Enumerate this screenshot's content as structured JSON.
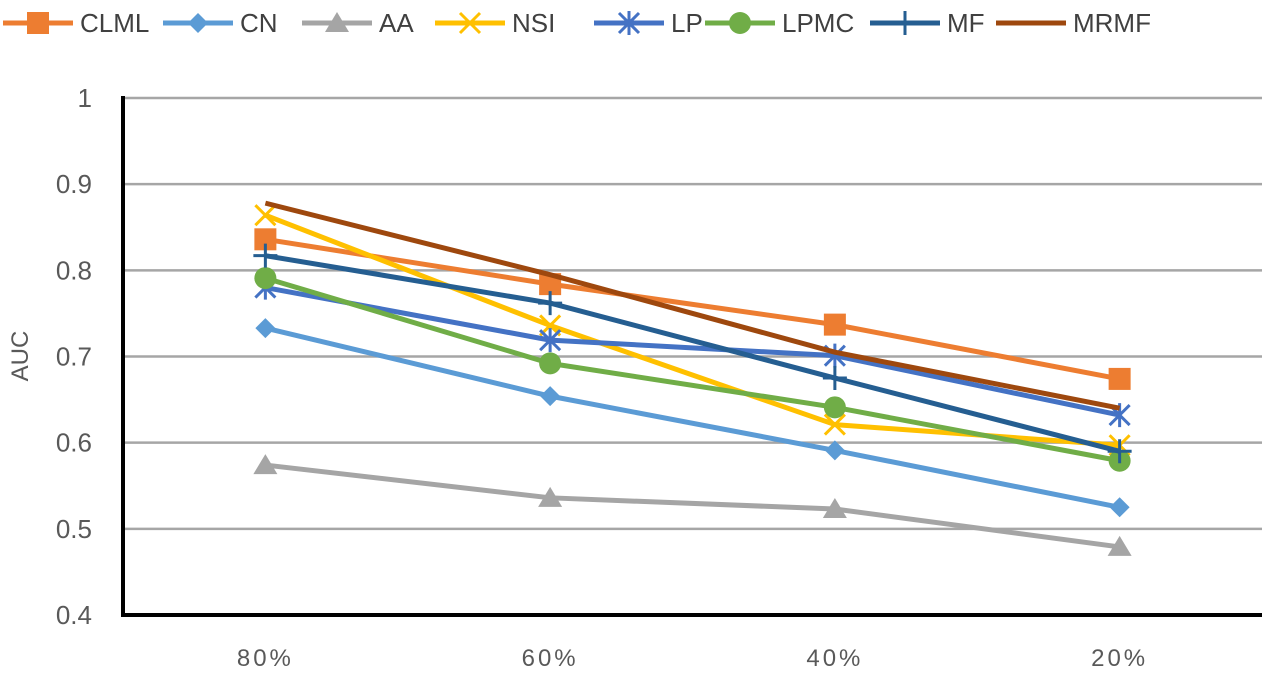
{
  "chart_data": {
    "type": "line",
    "title": "",
    "xlabel": "",
    "ylabel": "AUC",
    "categories": [
      "80%",
      "60%",
      "40%",
      "20%"
    ],
    "ylim": [
      0.4,
      1
    ],
    "yticks": [
      "0.4",
      "0.5",
      "0.6",
      "0.7",
      "0.8",
      "0.9",
      "1"
    ],
    "grid": true,
    "legend_position": "top",
    "series": [
      {
        "name": "CLML",
        "color": "#ED7D31",
        "marker": "square",
        "values": [
          0.836,
          0.784,
          0.737,
          0.674
        ]
      },
      {
        "name": "CN",
        "color": "#5B9BD5",
        "marker": "diamond",
        "values": [
          0.733,
          0.654,
          0.591,
          0.525
        ]
      },
      {
        "name": "AA",
        "color": "#A5A5A5",
        "marker": "triangle",
        "values": [
          0.574,
          0.536,
          0.523,
          0.479
        ]
      },
      {
        "name": "NSI",
        "color": "#FFC000",
        "marker": "x",
        "values": [
          0.864,
          0.736,
          0.621,
          0.597
        ]
      },
      {
        "name": "LP",
        "color": "#4472C4",
        "marker": "star",
        "values": [
          0.78,
          0.719,
          0.701,
          0.632
        ]
      },
      {
        "name": "LPMC",
        "color": "#70AD47",
        "marker": "circle",
        "values": [
          0.791,
          0.692,
          0.641,
          0.579
        ]
      },
      {
        "name": "MF",
        "color": "#255E91",
        "marker": "plus",
        "values": [
          0.817,
          0.762,
          0.675,
          0.59
        ]
      },
      {
        "name": "MRMF",
        "color": "#9E480E",
        "marker": "none",
        "values": [
          0.878,
          0.795,
          0.705,
          0.64
        ]
      }
    ]
  }
}
